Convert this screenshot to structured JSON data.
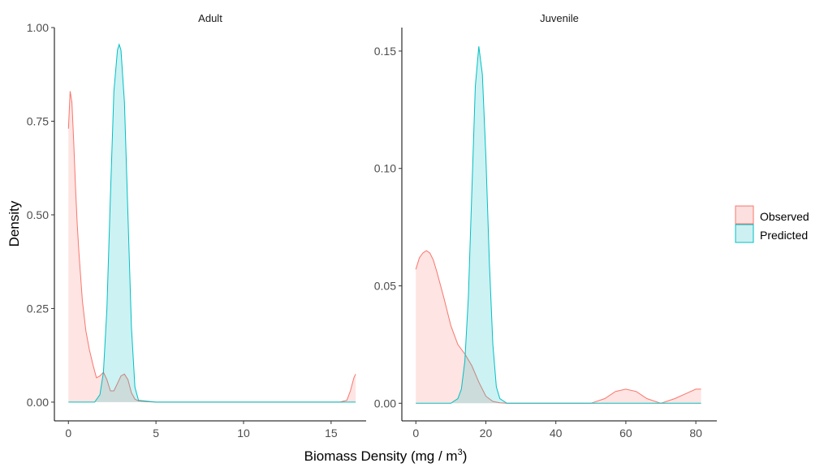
{
  "chart_data": {
    "type": "area",
    "xlabel": "Biomass Density (mg / m",
    "xlabel_superscript": "3",
    "xlabel_suffix": ")",
    "ylabel": "Density",
    "legend": {
      "placement": "right",
      "entries": [
        {
          "name": "Observed",
          "fill": "#fbe0df",
          "stroke": "#f8766d"
        },
        {
          "name": "Predicted",
          "fill": "#cdf0f2",
          "stroke": "#00bfc4"
        }
      ]
    },
    "panels": [
      {
        "strip": "Adult",
        "xlim": [
          -0.8,
          17.0
        ],
        "ylim": [
          -0.05,
          1.0
        ],
        "x_ticks": [
          0,
          5,
          10,
          15
        ],
        "y_ticks": [
          0.0,
          0.25,
          0.5,
          0.75,
          1.0
        ],
        "x_tick_labels": [
          "0",
          "5",
          "10",
          "15"
        ],
        "y_tick_labels": [
          "0.00",
          "0.25",
          "0.50",
          "0.75",
          "1.00"
        ],
        "series": [
          {
            "name": "Observed",
            "x": [
              0.0,
              0.1,
              0.2,
              0.3,
              0.4,
              0.5,
              0.6,
              0.8,
              1.0,
              1.2,
              1.4,
              1.6,
              1.8,
              2.0,
              2.2,
              2.4,
              2.6,
              2.8,
              3.0,
              3.2,
              3.4,
              3.6,
              3.8,
              4.0,
              4.5,
              5.0,
              6.0,
              8.0,
              10.0,
              12.0,
              14.0,
              15.5,
              15.9,
              16.1,
              16.3,
              16.4
            ],
            "y": [
              0.73,
              0.83,
              0.8,
              0.7,
              0.58,
              0.48,
              0.4,
              0.27,
              0.19,
              0.14,
              0.1,
              0.065,
              0.07,
              0.08,
              0.06,
              0.03,
              0.03,
              0.05,
              0.07,
              0.075,
              0.06,
              0.025,
              0.008,
              0.003,
              0.001,
              0.0,
              0.0,
              0.0,
              0.0,
              0.0,
              0.0,
              0.0,
              0.005,
              0.03,
              0.065,
              0.075
            ]
          },
          {
            "name": "Predicted",
            "x": [
              0.0,
              1.5,
              1.8,
              2.0,
              2.2,
              2.4,
              2.6,
              2.8,
              2.9,
              3.0,
              3.2,
              3.4,
              3.6,
              3.8,
              4.0,
              5.0,
              10.0,
              16.4
            ],
            "y": [
              0.0,
              0.0,
              0.02,
              0.08,
              0.25,
              0.55,
              0.83,
              0.94,
              0.955,
              0.94,
              0.8,
              0.5,
              0.2,
              0.04,
              0.005,
              0.0,
              0.0,
              0.0
            ]
          }
        ]
      },
      {
        "strip": "Juvenile",
        "xlim": [
          -4.0,
          86.0
        ],
        "ylim": [
          -0.0075,
          0.16
        ],
        "x_ticks": [
          0,
          20,
          40,
          60,
          80
        ],
        "y_ticks": [
          0.0,
          0.05,
          0.1,
          0.15
        ],
        "x_tick_labels": [
          "0",
          "20",
          "40",
          "60",
          "80"
        ],
        "y_tick_labels": [
          "0.00",
          "0.05",
          "0.10",
          "0.15"
        ],
        "series": [
          {
            "name": "Observed",
            "x": [
              0.0,
              1.0,
              2.0,
              3.0,
              4.0,
              5.0,
              6.0,
              8.0,
              10.0,
              12.0,
              14.0,
              16.0,
              18.0,
              20.0,
              22.0,
              24.0,
              26.0,
              30.0,
              40.0,
              50.0,
              54.0,
              57.0,
              60.0,
              63.0,
              66.0,
              70.0,
              74.0,
              77.0,
              80.0,
              81.5
            ],
            "y": [
              0.057,
              0.062,
              0.064,
              0.065,
              0.064,
              0.061,
              0.056,
              0.045,
              0.033,
              0.025,
              0.021,
              0.016,
              0.009,
              0.003,
              0.0008,
              0.0002,
              0.0,
              0.0,
              0.0,
              0.0,
              0.002,
              0.005,
              0.006,
              0.005,
              0.002,
              0.0,
              0.002,
              0.004,
              0.006,
              0.006
            ]
          },
          {
            "name": "Predicted",
            "x": [
              0.0,
              10.0,
              12.0,
              13.0,
              14.0,
              15.0,
              16.0,
              17.0,
              18.0,
              19.0,
              20.0,
              21.0,
              22.0,
              23.0,
              24.0,
              26.0,
              40.0,
              81.5
            ],
            "y": [
              0.0,
              0.0,
              0.002,
              0.006,
              0.018,
              0.045,
              0.09,
              0.135,
              0.152,
              0.14,
              0.105,
              0.06,
              0.025,
              0.007,
              0.002,
              0.0,
              0.0,
              0.0
            ]
          }
        ]
      }
    ]
  }
}
